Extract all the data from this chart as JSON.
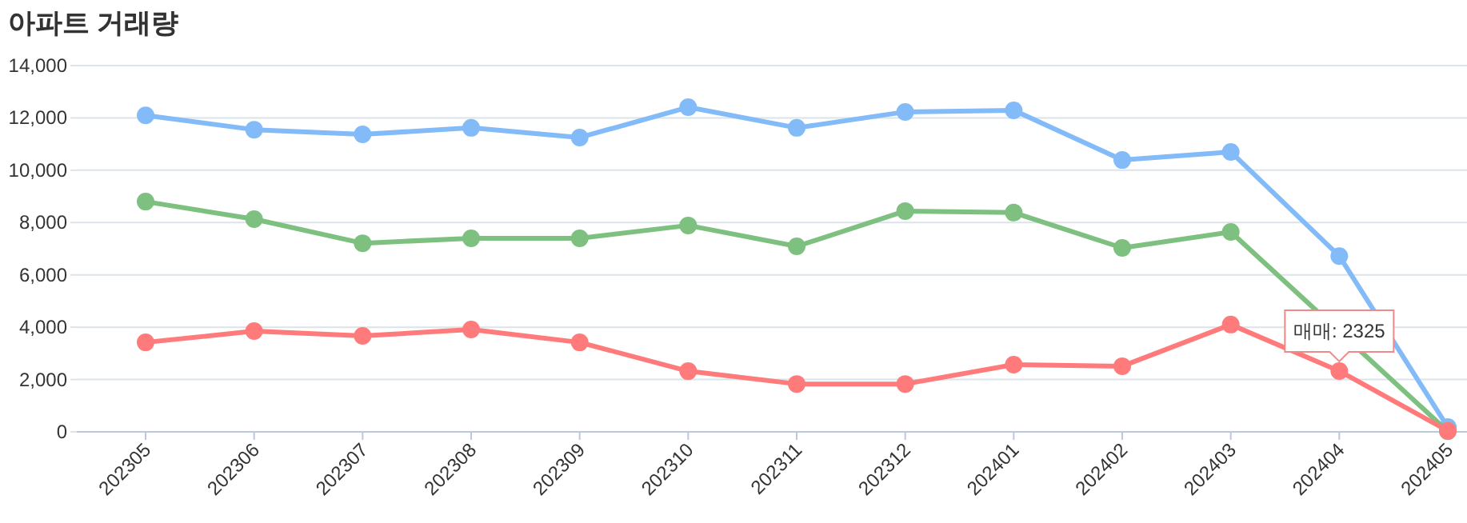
{
  "chart_data": {
    "type": "line",
    "title": "아파트 거래량",
    "categories": [
      "202305",
      "202306",
      "202307",
      "202308",
      "202309",
      "202310",
      "202311",
      "202312",
      "202401",
      "202402",
      "202403",
      "202404",
      "202405"
    ],
    "series": [
      {
        "color": "#82bbf8",
        "values": [
          12100,
          11550,
          11370,
          11620,
          11250,
          12410,
          11620,
          12230,
          12290,
          10390,
          10700,
          6720,
          180
        ]
      },
      {
        "color": "#7dc07f",
        "values": [
          8800,
          8130,
          7210,
          7400,
          7400,
          7890,
          7090,
          8440,
          8380,
          7030,
          7640,
          null,
          20
        ]
      },
      {
        "color": "#ff7b7b",
        "values": [
          3420,
          3850,
          3670,
          3910,
          3420,
          2320,
          1830,
          1830,
          2570,
          2510,
          4100,
          2325,
          40
        ]
      }
    ],
    "ylim": [
      0,
      14000
    ],
    "yticks": [
      0,
      {
        "value": 2000,
        "label": "2,000"
      },
      {
        "value": 4000,
        "label": "4,000"
      },
      {
        "value": 6000,
        "label": "6,000"
      },
      {
        "value": 8000,
        "label": "8,000"
      },
      {
        "value": 10000,
        "label": "10,000"
      },
      {
        "value": 12000,
        "label": "12,000"
      },
      {
        "value": 14000,
        "label": "14,000"
      }
    ],
    "grid": "y",
    "marker": "circle",
    "line_style": "solid",
    "annotations": [
      {
        "text": "매매: 2325",
        "x": "202404",
        "y": 2325
      }
    ]
  }
}
